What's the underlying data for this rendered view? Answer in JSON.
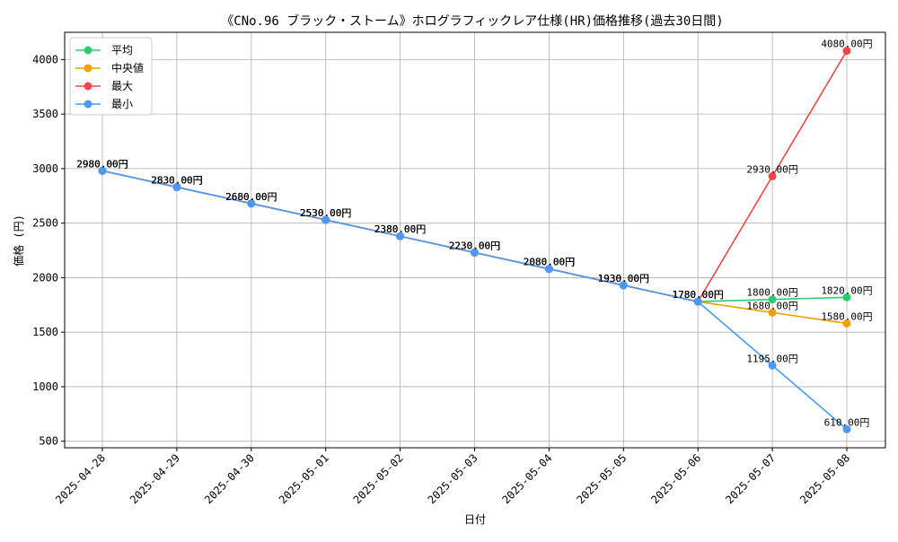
{
  "chart_data": {
    "type": "line",
    "title": "《CNo.96 ブラック・ストーム》ホログラフィックレア仕様(HR)価格推移(過去30日間)",
    "xlabel": "日付",
    "ylabel": "価格 (円)",
    "x": [
      "2025-04-28",
      "2025-04-29",
      "2025-04-30",
      "2025-05-01",
      "2025-05-02",
      "2025-05-03",
      "2025-05-04",
      "2025-05-05",
      "2025-05-06",
      "2025-05-07",
      "2025-05-08"
    ],
    "ylim": [
      440,
      4250
    ],
    "yticks": [
      500,
      1000,
      1500,
      2000,
      2500,
      3000,
      3500,
      4000
    ],
    "grid": true,
    "legend_position": "top-left",
    "series": [
      {
        "name": "平均",
        "color": "#2ecc71",
        "values": [
          2980,
          2830,
          2680,
          2530,
          2380,
          2230,
          2080,
          1930,
          1780,
          1800,
          1820
        ],
        "labels": [
          "2980.00円",
          "2830.00円",
          "2680.00円",
          "2530.00円",
          "2380.00円",
          "2230.00円",
          "2080.00円",
          "1930.00円",
          "1780.00円",
          "1800.00円",
          "1820.00円"
        ]
      },
      {
        "name": "中央値",
        "color": "#f5a000",
        "values": [
          2980,
          2830,
          2680,
          2530,
          2380,
          2230,
          2080,
          1930,
          1780,
          1680,
          1580
        ],
        "labels": [
          "2980.00円",
          "2830.00円",
          "2680.00円",
          "2530.00円",
          "2380.00円",
          "2230.00円",
          "2080.00円",
          "1930.00円",
          "1780.00円",
          "1680.00円",
          "1580.00円"
        ]
      },
      {
        "name": "最大",
        "color": "#f04848",
        "values": [
          2980,
          2830,
          2680,
          2530,
          2380,
          2230,
          2080,
          1930,
          1780,
          2930,
          4080
        ],
        "labels": [
          "2980.00円",
          "2830.00円",
          "2680.00円",
          "2530.00円",
          "2380.00円",
          "2230.00円",
          "2080.00円",
          "1930.00円",
          "1780.00円",
          "2930.00円",
          "4080.00円"
        ]
      },
      {
        "name": "最小",
        "color": "#4a9af5",
        "values": [
          2980,
          2830,
          2680,
          2530,
          2380,
          2230,
          2080,
          1930,
          1780,
          1195,
          610
        ],
        "labels": [
          "2980.00円",
          "2830.00円",
          "2680.00円",
          "2530.00円",
          "2380.00円",
          "2230.00円",
          "2080.00円",
          "1930.00円",
          "1780.00円",
          "1195.00円",
          "610.00円"
        ]
      }
    ]
  }
}
